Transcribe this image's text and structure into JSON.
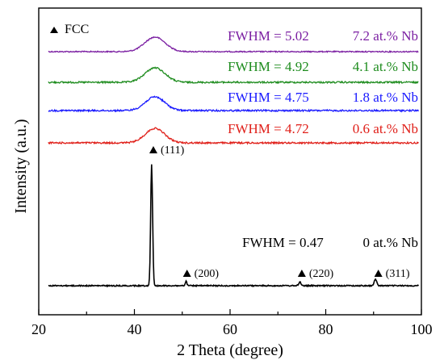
{
  "chart_data": {
    "type": "line",
    "title": "",
    "xlabel": "2 Theta (degree)",
    "ylabel": "Intensity (a.u.)",
    "xlim": [
      20,
      100
    ],
    "xticks": [
      20,
      40,
      60,
      80,
      100
    ],
    "grid": false,
    "legend": {
      "text": "FCC",
      "marker": "filled-triangle",
      "placement": "top-left"
    },
    "peak_labels": [
      {
        "label": "(111)",
        "x": 44.3
      },
      {
        "label": "(200)",
        "x": 51.0
      },
      {
        "label": "(220)",
        "x": 75.0
      },
      {
        "label": "(311)",
        "x": 91.0
      }
    ],
    "series": [
      {
        "composition": "7.2 at.% Nb",
        "fwhm_text": "FWHM = 5.02",
        "fwhm": 5.02,
        "color": "#7b1fa2",
        "peak_center": 44.3,
        "baseline": 0.94,
        "peak_height": 0.07
      },
      {
        "composition": "4.1 at.% Nb",
        "fwhm_text": "FWHM = 4.92",
        "fwhm": 4.92,
        "color": "#1e8c1e",
        "peak_center": 44.3,
        "baseline": 0.78,
        "peak_height": 0.09
      },
      {
        "composition": "1.8 at.% Nb",
        "fwhm_text": "FWHM = 4.75",
        "fwhm": 4.75,
        "color": "#1a1aff",
        "peak_center": 44.3,
        "baseline": 0.63,
        "peak_height": 0.09
      },
      {
        "composition": "0.6 at.% Nb",
        "fwhm_text": "FWHM = 4.72",
        "fwhm": 4.72,
        "color": "#e0201a",
        "peak_center": 44.3,
        "baseline": 0.46,
        "peak_height": 0.1
      },
      {
        "composition": "0 at.% Nb",
        "fwhm_text": "FWHM = 0.47",
        "fwhm": 0.47,
        "color": "#000000",
        "peak_center": 43.6,
        "baseline": 0.0,
        "peak_height": 1.0
      }
    ]
  }
}
